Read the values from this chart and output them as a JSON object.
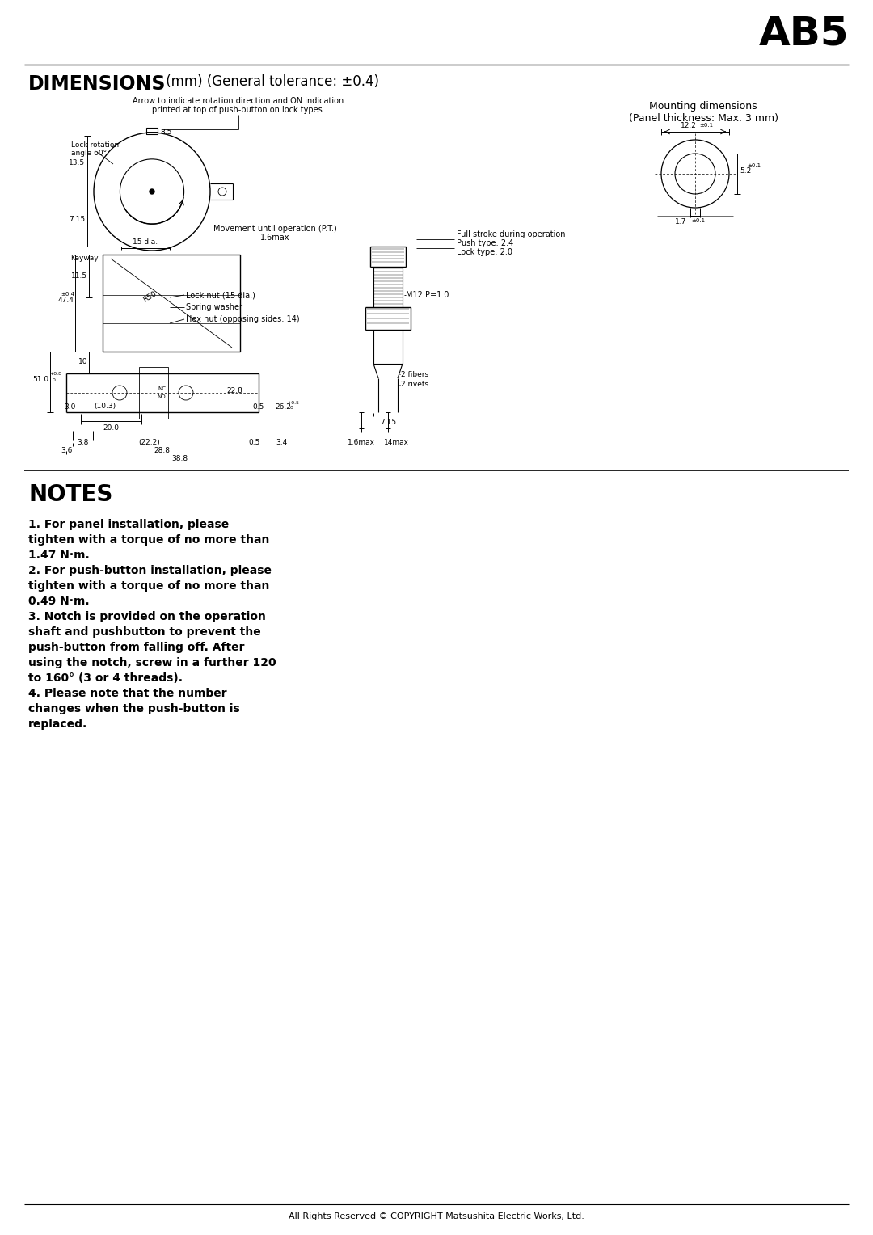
{
  "title_ab5": "AB5",
  "section_title_bold": "DIMENSIONS",
  "section_title_normal": " (mm) (General tolerance: ±0.4)",
  "mounting_title_line1": "Mounting dimensions",
  "mounting_title_line2": "(Panel thickness: Max. 3 mm)",
  "notes_title": "NOTES",
  "notes_lines": [
    "1. For panel installation, please",
    "tighten with a torque of no more than",
    "1.47 N·m.",
    "2. For push-button installation, please",
    "tighten with a torque of no more than",
    "0.49 N·m.",
    "3. Notch is provided on the operation",
    "shaft and pushbutton to prevent the",
    "push-button from falling off. After",
    "using the notch, screw in a further 120",
    "to 160° (3 or 4 threads).",
    "4. Please note that the number",
    "changes when the push-button is",
    "replaced."
  ],
  "footer": "All Rights Reserved © COPYRIGHT Matsushita Electric Works, Ltd.",
  "bg_color": "#ffffff"
}
